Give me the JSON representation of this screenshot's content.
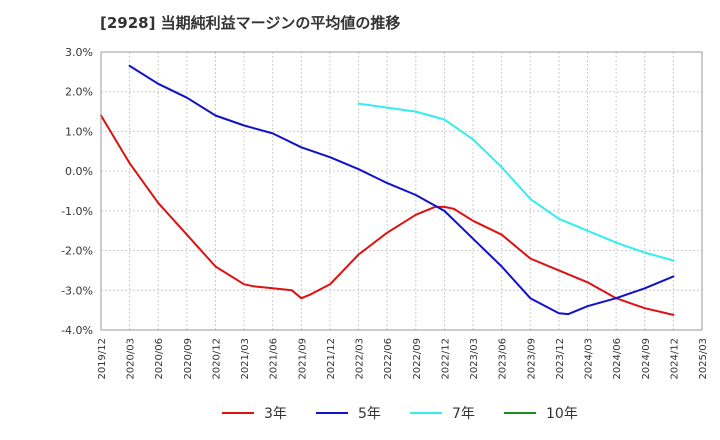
{
  "title": "[2928]  当期純利益マージンの平均値の推移",
  "chart_data": {
    "type": "line",
    "title": "[2928]  当期純利益マージンの平均値の推移",
    "xlabel": "",
    "ylabel": "",
    "ylim": [
      -4.0,
      3.0
    ],
    "y_ticks": [
      "3.0%",
      "2.0%",
      "1.0%",
      "0.0%",
      "-1.0%",
      "-2.0%",
      "-3.0%",
      "-4.0%"
    ],
    "y_tick_values": [
      3.0,
      2.0,
      1.0,
      0.0,
      -1.0,
      -2.0,
      -3.0,
      -4.0
    ],
    "x_ticks": [
      "2019/12",
      "2020/03",
      "2020/06",
      "2020/09",
      "2020/12",
      "2021/03",
      "2021/06",
      "2021/09",
      "2021/12",
      "2022/03",
      "2022/06",
      "2022/09",
      "2022/12",
      "2023/03",
      "2023/06",
      "2023/09",
      "2023/12",
      "2024/03",
      "2024/06",
      "2024/09",
      "2024/12",
      "2025/03"
    ],
    "grid": true,
    "legend_position": "bottom",
    "series": [
      {
        "name": "3年",
        "color": "#dd1111",
        "x": [
          "2019/12",
          "2020/03",
          "2020/06",
          "2020/09",
          "2020/12",
          "2021/03",
          "2021/04",
          "2021/06",
          "2021/08",
          "2021/09",
          "2021/10",
          "2021/12",
          "2022/01",
          "2022/03",
          "2022/06",
          "2022/09",
          "2022/11",
          "2022/12",
          "2023/01",
          "2023/03",
          "2023/06",
          "2023/09",
          "2023/12",
          "2024/03",
          "2024/06",
          "2024/09",
          "2024/12"
        ],
        "values": [
          1.4,
          0.2,
          -0.8,
          -1.6,
          -2.4,
          -2.85,
          -2.9,
          -2.95,
          -3.0,
          -3.2,
          -3.1,
          -2.85,
          -2.6,
          -2.1,
          -1.55,
          -1.1,
          -0.9,
          -0.9,
          -0.95,
          -1.25,
          -1.6,
          -2.2,
          -2.5,
          -2.8,
          -3.2,
          -3.45,
          -3.62
        ]
      },
      {
        "name": "5年",
        "color": "#1111cc",
        "x": [
          "2020/03",
          "2020/06",
          "2020/09",
          "2020/12",
          "2021/03",
          "2021/06",
          "2021/09",
          "2021/12",
          "2022/03",
          "2022/06",
          "2022/09",
          "2022/12",
          "2023/03",
          "2023/06",
          "2023/09",
          "2023/12",
          "2024/01",
          "2024/03",
          "2024/06",
          "2024/09",
          "2024/12"
        ],
        "values": [
          2.65,
          2.2,
          1.85,
          1.4,
          1.15,
          0.95,
          0.6,
          0.35,
          0.05,
          -0.3,
          -0.6,
          -1.0,
          -1.7,
          -2.4,
          -3.2,
          -3.58,
          -3.6,
          -3.4,
          -3.2,
          -2.95,
          -2.65
        ]
      },
      {
        "name": "7年",
        "color": "#33eeee",
        "x": [
          "2022/03",
          "2022/06",
          "2022/09",
          "2022/12",
          "2023/03",
          "2023/06",
          "2023/09",
          "2023/12",
          "2024/03",
          "2024/06",
          "2024/09",
          "2024/12"
        ],
        "values": [
          1.7,
          1.6,
          1.5,
          1.3,
          0.8,
          0.1,
          -0.7,
          -1.2,
          -1.5,
          -1.8,
          -2.05,
          -2.25
        ]
      },
      {
        "name": "10年",
        "color": "#228822",
        "x": [],
        "values": []
      }
    ]
  }
}
